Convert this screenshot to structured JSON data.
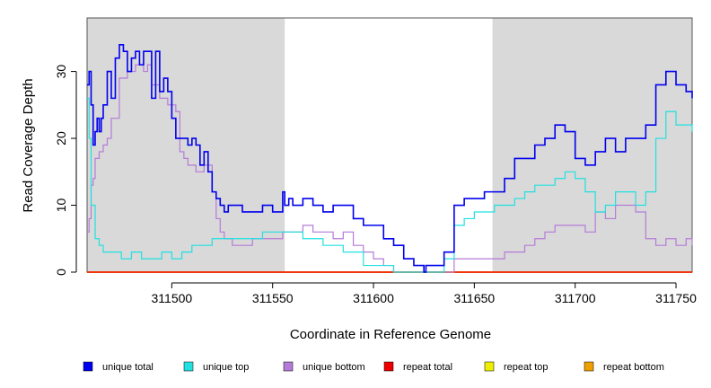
{
  "chart_data": {
    "type": "line",
    "step": true,
    "xlabel": "Coordinate in Reference Genome",
    "ylabel": "Read Coverage Depth",
    "xlim": [
      311458,
      311758
    ],
    "ylim": [
      0,
      38
    ],
    "x_ticks": [
      311500,
      311550,
      311600,
      311650,
      311700,
      311750
    ],
    "y_ticks": [
      0,
      10,
      20,
      30
    ],
    "shaded_regions": [
      [
        311458,
        311556
      ],
      [
        311659,
        311758
      ]
    ],
    "colors": {
      "shade": "#d9d9d9",
      "unique_total": "#0000ee",
      "unique_top": "#22e0e0",
      "unique_bottom": "#b57bd9",
      "repeat_total": "#ee0000",
      "repeat_top": "#eeee00",
      "repeat_bottom": "#eea000"
    },
    "series": [
      {
        "name": "unique total",
        "key": "unique_total",
        "x": [
          311458,
          311459,
          311460,
          311461,
          311462,
          311463,
          311464,
          311465,
          311466,
          311468,
          311470,
          311472,
          311474,
          311476,
          311478,
          311480,
          311482,
          311484,
          311486,
          311488,
          311490,
          311492,
          311494,
          311496,
          311498,
          311500,
          311502,
          311504,
          311506,
          311508,
          311510,
          311512,
          311514,
          311516,
          311518,
          311520,
          311522,
          311524,
          311526,
          311528,
          311530,
          311535,
          311540,
          311545,
          311550,
          311555,
          311556,
          311558,
          311560,
          311565,
          311570,
          311575,
          311580,
          311585,
          311590,
          311595,
          311600,
          311605,
          311610,
          311615,
          311620,
          311625,
          311626,
          311628,
          311630,
          311635,
          311640,
          311645,
          311650,
          311655,
          311660,
          311665,
          311670,
          311675,
          311680,
          311685,
          311690,
          311695,
          311700,
          311705,
          311710,
          311715,
          311720,
          311725,
          311730,
          311735,
          311740,
          311745,
          311750,
          311755,
          311758
        ],
        "y": [
          28,
          30,
          25,
          19,
          21,
          23,
          21,
          23,
          25,
          30,
          26,
          32,
          34,
          33,
          30,
          32,
          33,
          31,
          33,
          33,
          26,
          33,
          27,
          29,
          27,
          23,
          20,
          20,
          20,
          19,
          20,
          19,
          16,
          18,
          15,
          12,
          11,
          10,
          9,
          10,
          10,
          9,
          9,
          10,
          9,
          12,
          10,
          11,
          10,
          11,
          10,
          9,
          10,
          10,
          8,
          7,
          7,
          5,
          4,
          2,
          1,
          0,
          1,
          1,
          1,
          3,
          10,
          11,
          11,
          12,
          12,
          14,
          17,
          17,
          19,
          20,
          22,
          21,
          17,
          16,
          18,
          20,
          18,
          20,
          20,
          22,
          28,
          30,
          28,
          27,
          26
        ]
      },
      {
        "name": "unique top",
        "key": "unique_top",
        "x": [
          311458,
          311459,
          311460,
          311462,
          311464,
          311466,
          311470,
          311475,
          311480,
          311485,
          311490,
          311495,
          311500,
          311505,
          311510,
          311515,
          311520,
          311525,
          311530,
          311535,
          311540,
          311545,
          311550,
          311555,
          311556,
          311560,
          311565,
          311570,
          311575,
          311580,
          311585,
          311590,
          311595,
          311600,
          311605,
          311610,
          311615,
          311620,
          311625,
          311630,
          311635,
          311640,
          311645,
          311650,
          311655,
          311660,
          311665,
          311670,
          311675,
          311680,
          311685,
          311690,
          311695,
          311700,
          311705,
          311710,
          311715,
          311720,
          311725,
          311730,
          311735,
          311740,
          311745,
          311750,
          311755,
          311758
        ],
        "y": [
          26,
          20,
          10,
          5,
          4,
          3,
          3,
          2,
          3,
          2,
          2,
          3,
          2,
          3,
          4,
          4,
          5,
          5,
          5,
          5,
          5,
          6,
          6,
          6,
          6,
          6,
          5,
          5,
          4,
          4,
          3,
          3,
          1,
          1,
          1,
          0,
          0,
          0,
          0,
          0,
          2,
          7,
          8,
          9,
          9,
          10,
          10,
          11,
          12,
          13,
          13,
          14,
          15,
          14,
          12,
          9,
          10,
          12,
          12,
          10,
          12,
          20,
          24,
          22,
          22,
          21
        ]
      },
      {
        "name": "unique bottom",
        "key": "unique_bottom",
        "x": [
          311458,
          311459,
          311460,
          311461,
          311462,
          311464,
          311466,
          311468,
          311470,
          311474,
          311478,
          311482,
          311486,
          311488,
          311490,
          311494,
          311498,
          311502,
          311504,
          311506,
          311508,
          311512,
          311516,
          311520,
          311522,
          311524,
          311526,
          311530,
          311535,
          311540,
          311545,
          311550,
          311555,
          311560,
          311565,
          311570,
          311575,
          311580,
          311585,
          311590,
          311595,
          311600,
          311605,
          311610,
          311615,
          311620,
          311625,
          311630,
          311635,
          311640,
          311645,
          311650,
          311655,
          311660,
          311665,
          311670,
          311675,
          311680,
          311685,
          311690,
          311695,
          311700,
          311705,
          311710,
          311715,
          311720,
          311725,
          311730,
          311735,
          311740,
          311745,
          311750,
          311755,
          311758
        ],
        "y": [
          6,
          8,
          13,
          14,
          17,
          18,
          19,
          20,
          23,
          29,
          30,
          31,
          30,
          31,
          28,
          26,
          25,
          24,
          18,
          17,
          16,
          15,
          16,
          12,
          8,
          6,
          5,
          4,
          4,
          5,
          5,
          5,
          6,
          6,
          7,
          6,
          6,
          5,
          6,
          4,
          3,
          2,
          1,
          0,
          0,
          0,
          0,
          0,
          0,
          2,
          2,
          2,
          2,
          2,
          3,
          3,
          4,
          5,
          6,
          7,
          7,
          7,
          6,
          9,
          8,
          10,
          10,
          9,
          5,
          4,
          5,
          4,
          5,
          4
        ]
      },
      {
        "name": "repeat total",
        "key": "repeat_total",
        "x": [
          311458,
          311758
        ],
        "y": [
          0,
          0
        ]
      },
      {
        "name": "repeat top",
        "key": "repeat_top",
        "x": [
          311458,
          311758
        ],
        "y": [
          0,
          0
        ]
      },
      {
        "name": "repeat bottom",
        "key": "repeat_bottom",
        "x": [
          311458,
          311758
        ],
        "y": [
          0,
          0
        ]
      }
    ],
    "legend": [
      {
        "label": "unique total",
        "key": "unique_total"
      },
      {
        "label": "unique top",
        "key": "unique_top"
      },
      {
        "label": "unique bottom",
        "key": "unique_bottom"
      },
      {
        "label": "repeat total",
        "key": "repeat_total"
      },
      {
        "label": "repeat top",
        "key": "repeat_top"
      },
      {
        "label": "repeat bottom",
        "key": "repeat_bottom"
      }
    ]
  }
}
